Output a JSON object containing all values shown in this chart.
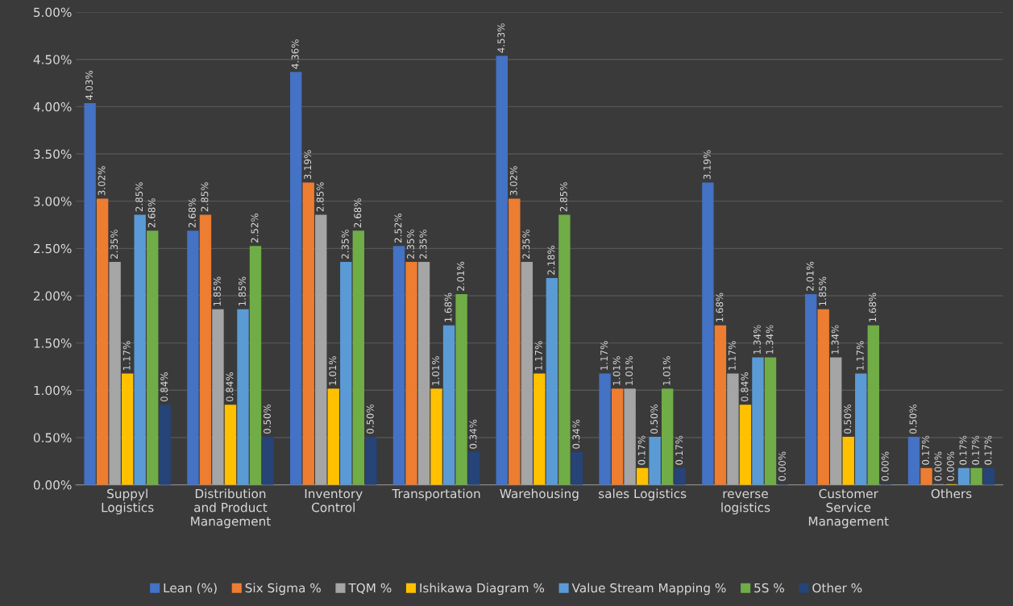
{
  "chart_data": {
    "type": "bar",
    "categories": [
      "Suppyl\nLogistics",
      "Distribution\nand Product\nManagement",
      "Inventory\nControl",
      "Transportation",
      "Warehousing",
      "sales Logistics",
      "reverse\nlogistics",
      "Customer\nService\nManagement",
      "Others"
    ],
    "series": [
      {
        "name": "Lean (%)",
        "color": "#4472c4",
        "values": [
          4.03,
          2.68,
          4.36,
          2.52,
          4.53,
          1.17,
          3.19,
          2.01,
          0.5
        ],
        "value_labels": [
          "4.03%",
          "2.68%",
          "4.36%",
          "2.52%",
          "4.53%",
          "1.17%",
          "3.19%",
          "2.01%",
          "0.50%"
        ]
      },
      {
        "name": "Six Sigma %",
        "color": "#ed7d31",
        "values": [
          3.02,
          2.85,
          3.19,
          2.35,
          3.02,
          1.01,
          1.68,
          1.85,
          0.17
        ],
        "value_labels": [
          "3.02%",
          "2.85%",
          "3.19%",
          "2.35%",
          "3.02%",
          "1.01%",
          "1.68%",
          "1.85%",
          "0.17%"
        ]
      },
      {
        "name": "TQM %",
        "color": "#a5a5a5",
        "values": [
          2.35,
          1.85,
          2.85,
          2.35,
          2.35,
          1.01,
          1.17,
          1.34,
          0.0
        ],
        "value_labels": [
          "2.35%",
          "1.85%",
          "2.85%",
          "2.35%",
          "2.35%",
          "1.01%",
          "1.17%",
          "1.34%",
          "0.00%"
        ]
      },
      {
        "name": "Ishikawa Diagram %",
        "color": "#ffc000",
        "values": [
          1.17,
          0.84,
          1.01,
          1.01,
          1.17,
          0.17,
          0.84,
          0.5,
          0.0
        ],
        "value_labels": [
          "1.17%",
          "0.84%",
          "1.01%",
          "1.01%",
          "1.17%",
          "0.17%",
          "0.84%",
          "0.50%",
          "0.00%"
        ]
      },
      {
        "name": "Value Stream Mapping %",
        "color": "#5b9bd5",
        "values": [
          2.85,
          1.85,
          2.35,
          1.68,
          2.18,
          0.5,
          1.34,
          1.17,
          0.17
        ],
        "value_labels": [
          "2.85%",
          "1.85%",
          "2.35%",
          "1.68%",
          "2.18%",
          "0.50%",
          "1.34%",
          "1.17%",
          "0.17%"
        ]
      },
      {
        "name": "5S %",
        "color": "#70ad47",
        "values": [
          2.68,
          2.52,
          2.68,
          2.01,
          2.85,
          1.01,
          1.34,
          1.68,
          0.17
        ],
        "value_labels": [
          "2.68%",
          "2.52%",
          "2.68%",
          "2.01%",
          "2.85%",
          "1.01%",
          "1.34%",
          "1.68%",
          "0.17%"
        ]
      },
      {
        "name": "Other %",
        "color": "#264478",
        "values": [
          0.84,
          0.5,
          0.5,
          0.34,
          0.34,
          0.17,
          0.0,
          0.0,
          0.17
        ],
        "value_labels": [
          "0.84%",
          "0.50%",
          "0.50%",
          "0.34%",
          "0.34%",
          "0.17%",
          "0.00%",
          "0.00%",
          "0.17%"
        ]
      }
    ],
    "ylim": [
      0,
      5
    ],
    "yticks": [
      {
        "value": 0,
        "label": "0.00%"
      },
      {
        "value": 0.5,
        "label": "0.50%"
      },
      {
        "value": 1,
        "label": "1.00%"
      },
      {
        "value": 1.5,
        "label": "1.50%"
      },
      {
        "value": 2,
        "label": "2.00%"
      },
      {
        "value": 2.5,
        "label": "2.50%"
      },
      {
        "value": 3,
        "label": "3.00%"
      },
      {
        "value": 3.5,
        "label": "3.50%"
      },
      {
        "value": 4,
        "label": "4.00%"
      },
      {
        "value": 4.5,
        "label": "4.50%"
      },
      {
        "value": 5,
        "label": "5.00%"
      }
    ],
    "grid": "y",
    "legend": "bottom"
  }
}
